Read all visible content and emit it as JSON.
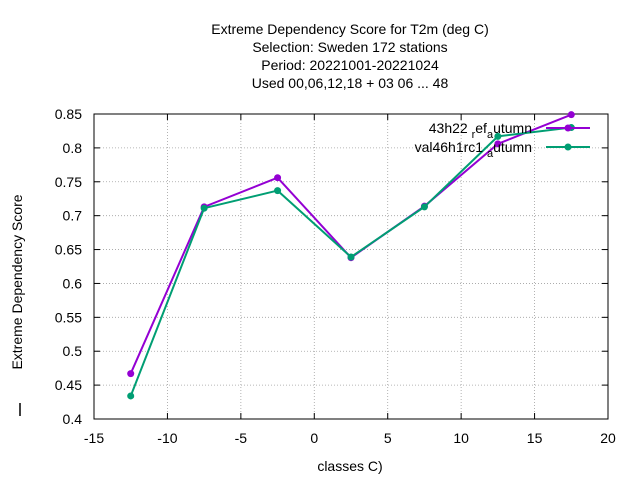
{
  "chart_data": {
    "type": "line",
    "title": [
      "Extreme Dependency Score  for T2m (deg C)",
      "Selection: Sweden    172 stations",
      "Period: 20221001-20221024",
      "Used  00,06,12,18  + 03 06 ... 48"
    ],
    "xlabel": "classes C)",
    "ylabel": "Extreme Dependency Score",
    "xlim": [
      -15,
      20
    ],
    "ylim": [
      0.4,
      0.85
    ],
    "xticks": [
      "-15",
      "-10",
      "-5",
      "0",
      "5",
      "10",
      "15",
      "20"
    ],
    "yticks": [
      "0.4",
      "0.45",
      "0.5",
      "0.55",
      "0.6",
      "0.65",
      "0.7",
      "0.75",
      "0.8",
      "0.85"
    ],
    "grid": true,
    "legend_position": "top-right",
    "x": [
      -12.5,
      -7.5,
      -2.5,
      2.5,
      7.5,
      12.5,
      17.5
    ],
    "series": [
      {
        "name_parts": [
          "43h22 ",
          "r",
          "ef",
          "a",
          "utumn"
        ],
        "color": "#9400d3",
        "values": [
          0.467,
          0.713,
          0.756,
          0.638,
          0.714,
          0.806,
          0.849
        ]
      },
      {
        "name_parts": [
          "val46h1rc1 ",
          "a",
          "utumn"
        ],
        "color": "#009e73",
        "values": [
          0.434,
          0.711,
          0.737,
          0.639,
          0.713,
          0.817,
          0.83
        ]
      }
    ]
  }
}
